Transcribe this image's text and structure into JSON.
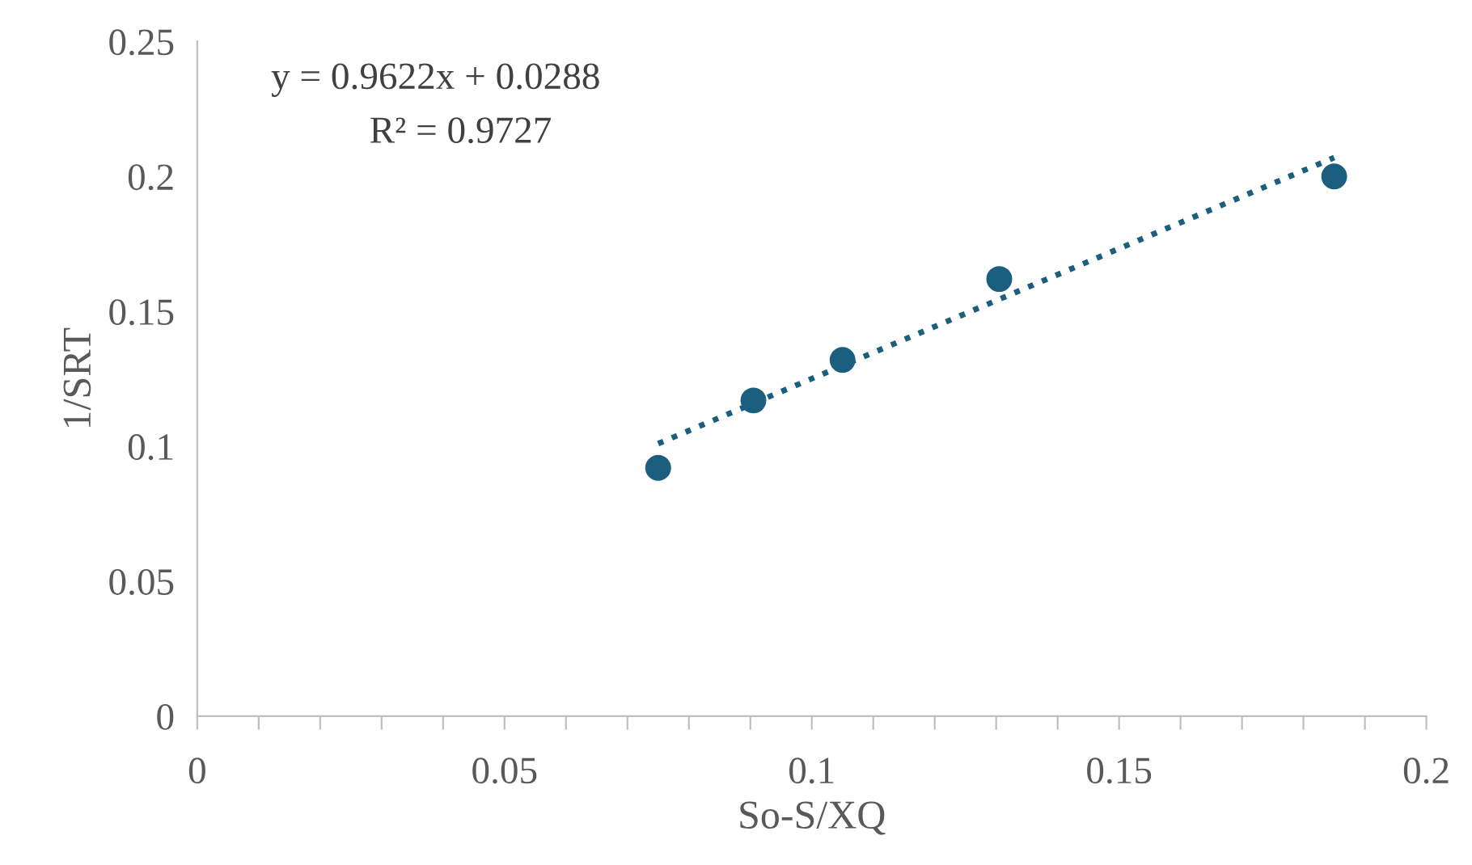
{
  "chart_data": {
    "type": "scatter",
    "xlabel": "So-S/XQ",
    "ylabel": "1/SRT",
    "xlim": [
      0,
      0.2
    ],
    "ylim": [
      0,
      0.25
    ],
    "xticks": [
      0,
      {
        "value": 0.01,
        "label": null
      },
      {
        "value": 0.02,
        "label": null
      },
      {
        "value": 0.03,
        "label": null
      },
      {
        "value": 0.04,
        "label": null
      },
      0.05,
      {
        "value": 0.06,
        "label": null
      },
      {
        "value": 0.07,
        "label": null
      },
      {
        "value": 0.08,
        "label": null
      },
      {
        "value": 0.09,
        "label": null
      },
      0.1,
      {
        "value": 0.11,
        "label": null
      },
      {
        "value": 0.12,
        "label": null
      },
      {
        "value": 0.13,
        "label": null
      },
      {
        "value": 0.14,
        "label": null
      },
      0.15,
      {
        "value": 0.16,
        "label": null
      },
      {
        "value": 0.17,
        "label": null
      },
      {
        "value": 0.18,
        "label": null
      },
      {
        "value": 0.19,
        "label": null
      },
      0.2
    ],
    "yticks": [
      0,
      0.05,
      0.1,
      0.15,
      0.2,
      0.25
    ],
    "grid": false,
    "annotations": [
      "y = 0.9622x + 0.0288",
      "R² = 0.9727"
    ],
    "series": [
      {
        "color": "#1b5e7e",
        "marker": "circle",
        "x": [
          0.075,
          0.0905,
          0.105,
          0.1305,
          0.185
        ],
        "values": [
          0.092,
          0.117,
          0.132,
          0.162,
          0.2
        ]
      },
      {
        "type": "line",
        "color": "#1b5e7e",
        "marker": "none",
        "line_style": "dotted",
        "x": [
          0.075,
          0.185
        ],
        "values": [
          0.101,
          0.207
        ]
      }
    ]
  }
}
